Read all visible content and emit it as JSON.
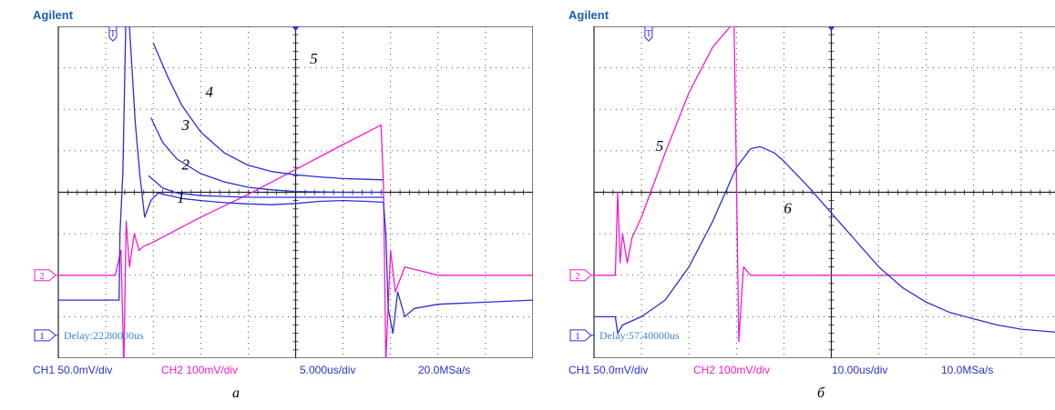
{
  "chart_data": [
    {
      "type": "line",
      "panel_label": "а",
      "brand": "Agilent",
      "grid": true,
      "divisions": [
        10,
        8
      ],
      "delay_text": "Delay:22.80000us",
      "status": {
        "ch1": "CH1 50.0mV/div",
        "ch2": "CH2 100mV/div",
        "timebase": "5.000us/div",
        "sample_rate": "20.0MSa/s"
      },
      "markers": {
        "trigger": "T",
        "ch2": "2",
        "ch1": "1"
      },
      "axes": {
        "xlim": [
          0,
          10
        ],
        "ylim": [
          -4,
          4
        ]
      },
      "colors": {
        "ch1": "#2a2fd4",
        "ch2": "#f21bd0",
        "grid": "#222222",
        "screen": "#ffffff"
      },
      "series": [
        {
          "name": "5",
          "channel": "CH2",
          "x": [
            0,
            1.2,
            1.32,
            1.38,
            1.43,
            1.5,
            1.6,
            1.7,
            1.8,
            2.0,
            3.0,
            4.0,
            5.0,
            6.0,
            6.8,
            6.85,
            6.9,
            7.0,
            7.1,
            7.3,
            8.0,
            10.0
          ],
          "y": [
            -2.0,
            -2.0,
            -1.4,
            -4.2,
            -0.7,
            -1.8,
            -1.0,
            -1.4,
            -1.3,
            -1.2,
            -0.6,
            -0.05,
            0.55,
            1.15,
            1.62,
            0.2,
            -4.1,
            -1.4,
            -2.4,
            -1.8,
            -2.0,
            -2.0
          ]
        },
        {
          "name": "1",
          "channel": "CH1",
          "x": [
            0,
            1.28,
            1.3,
            1.36,
            1.42,
            1.5,
            1.62,
            1.72,
            1.82,
            1.95,
            2.1,
            2.3,
            2.6,
            3.0,
            3.5,
            4.0,
            4.5,
            5.0,
            5.5,
            6.0,
            6.5,
            6.85,
            6.9,
            6.95,
            7.05,
            7.15,
            7.3,
            7.5,
            8.0,
            10.0
          ],
          "y": [
            -2.6,
            -2.6,
            -1.0,
            0.5,
            4.0,
            4.0,
            1.7,
            0.4,
            -0.6,
            -0.2,
            -0.02,
            -0.07,
            -0.15,
            -0.2,
            -0.25,
            -0.28,
            -0.3,
            -0.27,
            -0.22,
            -0.2,
            -0.22,
            -0.24,
            -1.0,
            -2.8,
            -3.4,
            -2.4,
            -3.0,
            -2.8,
            -2.7,
            -2.6
          ]
        },
        {
          "name": "2",
          "channel": "CH1",
          "x": [
            1.9,
            2.2,
            2.5,
            3.0,
            3.5,
            4.0,
            5.0,
            6.0,
            6.85
          ],
          "y": [
            0.4,
            0.1,
            -0.02,
            -0.08,
            -0.1,
            -0.12,
            -0.12,
            -0.12,
            -0.12
          ]
        },
        {
          "name": "3",
          "channel": "CH1",
          "x": [
            1.95,
            2.2,
            2.5,
            3.0,
            3.5,
            4.0,
            4.5,
            5.0,
            6.0,
            6.85
          ],
          "y": [
            1.8,
            1.2,
            0.8,
            0.45,
            0.25,
            0.12,
            0.06,
            0.02,
            0.0,
            0.0
          ]
        },
        {
          "name": "4",
          "channel": "CH1",
          "x": [
            2.0,
            2.3,
            2.6,
            3.0,
            3.5,
            4.0,
            4.5,
            5.0,
            5.5,
            6.0,
            6.85
          ],
          "y": [
            3.6,
            2.8,
            2.1,
            1.45,
            0.95,
            0.65,
            0.5,
            0.42,
            0.37,
            0.33,
            0.3
          ]
        }
      ]
    },
    {
      "type": "line",
      "panel_label": "б",
      "brand": "Agilent",
      "grid": true,
      "divisions": [
        10,
        8
      ],
      "delay_text": "Delay:57.40000us",
      "status": {
        "ch1": "CH1 50.0mV/div",
        "ch2": "CH2 100mV/div",
        "timebase": "10.00us/div",
        "sample_rate": "10.0MSa/s"
      },
      "markers": {
        "trigger": "T",
        "ch2": "2",
        "ch1": "1"
      },
      "axes": {
        "xlim": [
          0,
          10
        ],
        "ylim": [
          -4,
          4
        ]
      },
      "colors": {
        "ch1": "#2a2fd4",
        "ch2": "#f21bd0",
        "grid": "#222222",
        "screen": "#ffffff"
      },
      "series": [
        {
          "name": "5",
          "channel": "CH2",
          "x": [
            0,
            0.45,
            0.5,
            0.55,
            0.6,
            0.7,
            0.8,
            1.0,
            1.5,
            2.0,
            2.5,
            2.95,
            3.0,
            3.05,
            3.15,
            3.3,
            3.5,
            4.0,
            10.0
          ],
          "y": [
            -2.0,
            -2.0,
            0.0,
            -1.7,
            -1.0,
            -1.7,
            -1.1,
            -0.6,
            0.95,
            2.4,
            3.5,
            4.1,
            0.4,
            -3.6,
            -1.8,
            -2.0,
            -2.0,
            -2.0,
            -2.0
          ]
        },
        {
          "name": "6",
          "channel": "CH1",
          "x": [
            0,
            0.45,
            0.5,
            0.6,
            1.0,
            1.5,
            2.0,
            2.5,
            3.0,
            3.3,
            3.5,
            3.8,
            4.0,
            4.5,
            5.0,
            5.5,
            6.0,
            6.5,
            7.0,
            7.5,
            8.0,
            8.5,
            9.0,
            10.0
          ],
          "y": [
            -3.0,
            -3.0,
            -3.4,
            -3.2,
            -3.0,
            -2.6,
            -1.8,
            -0.7,
            0.6,
            1.05,
            1.1,
            0.95,
            0.75,
            0.15,
            -0.5,
            -1.15,
            -1.8,
            -2.3,
            -2.65,
            -2.9,
            -3.05,
            -3.2,
            -3.3,
            -3.4
          ]
        }
      ]
    }
  ]
}
